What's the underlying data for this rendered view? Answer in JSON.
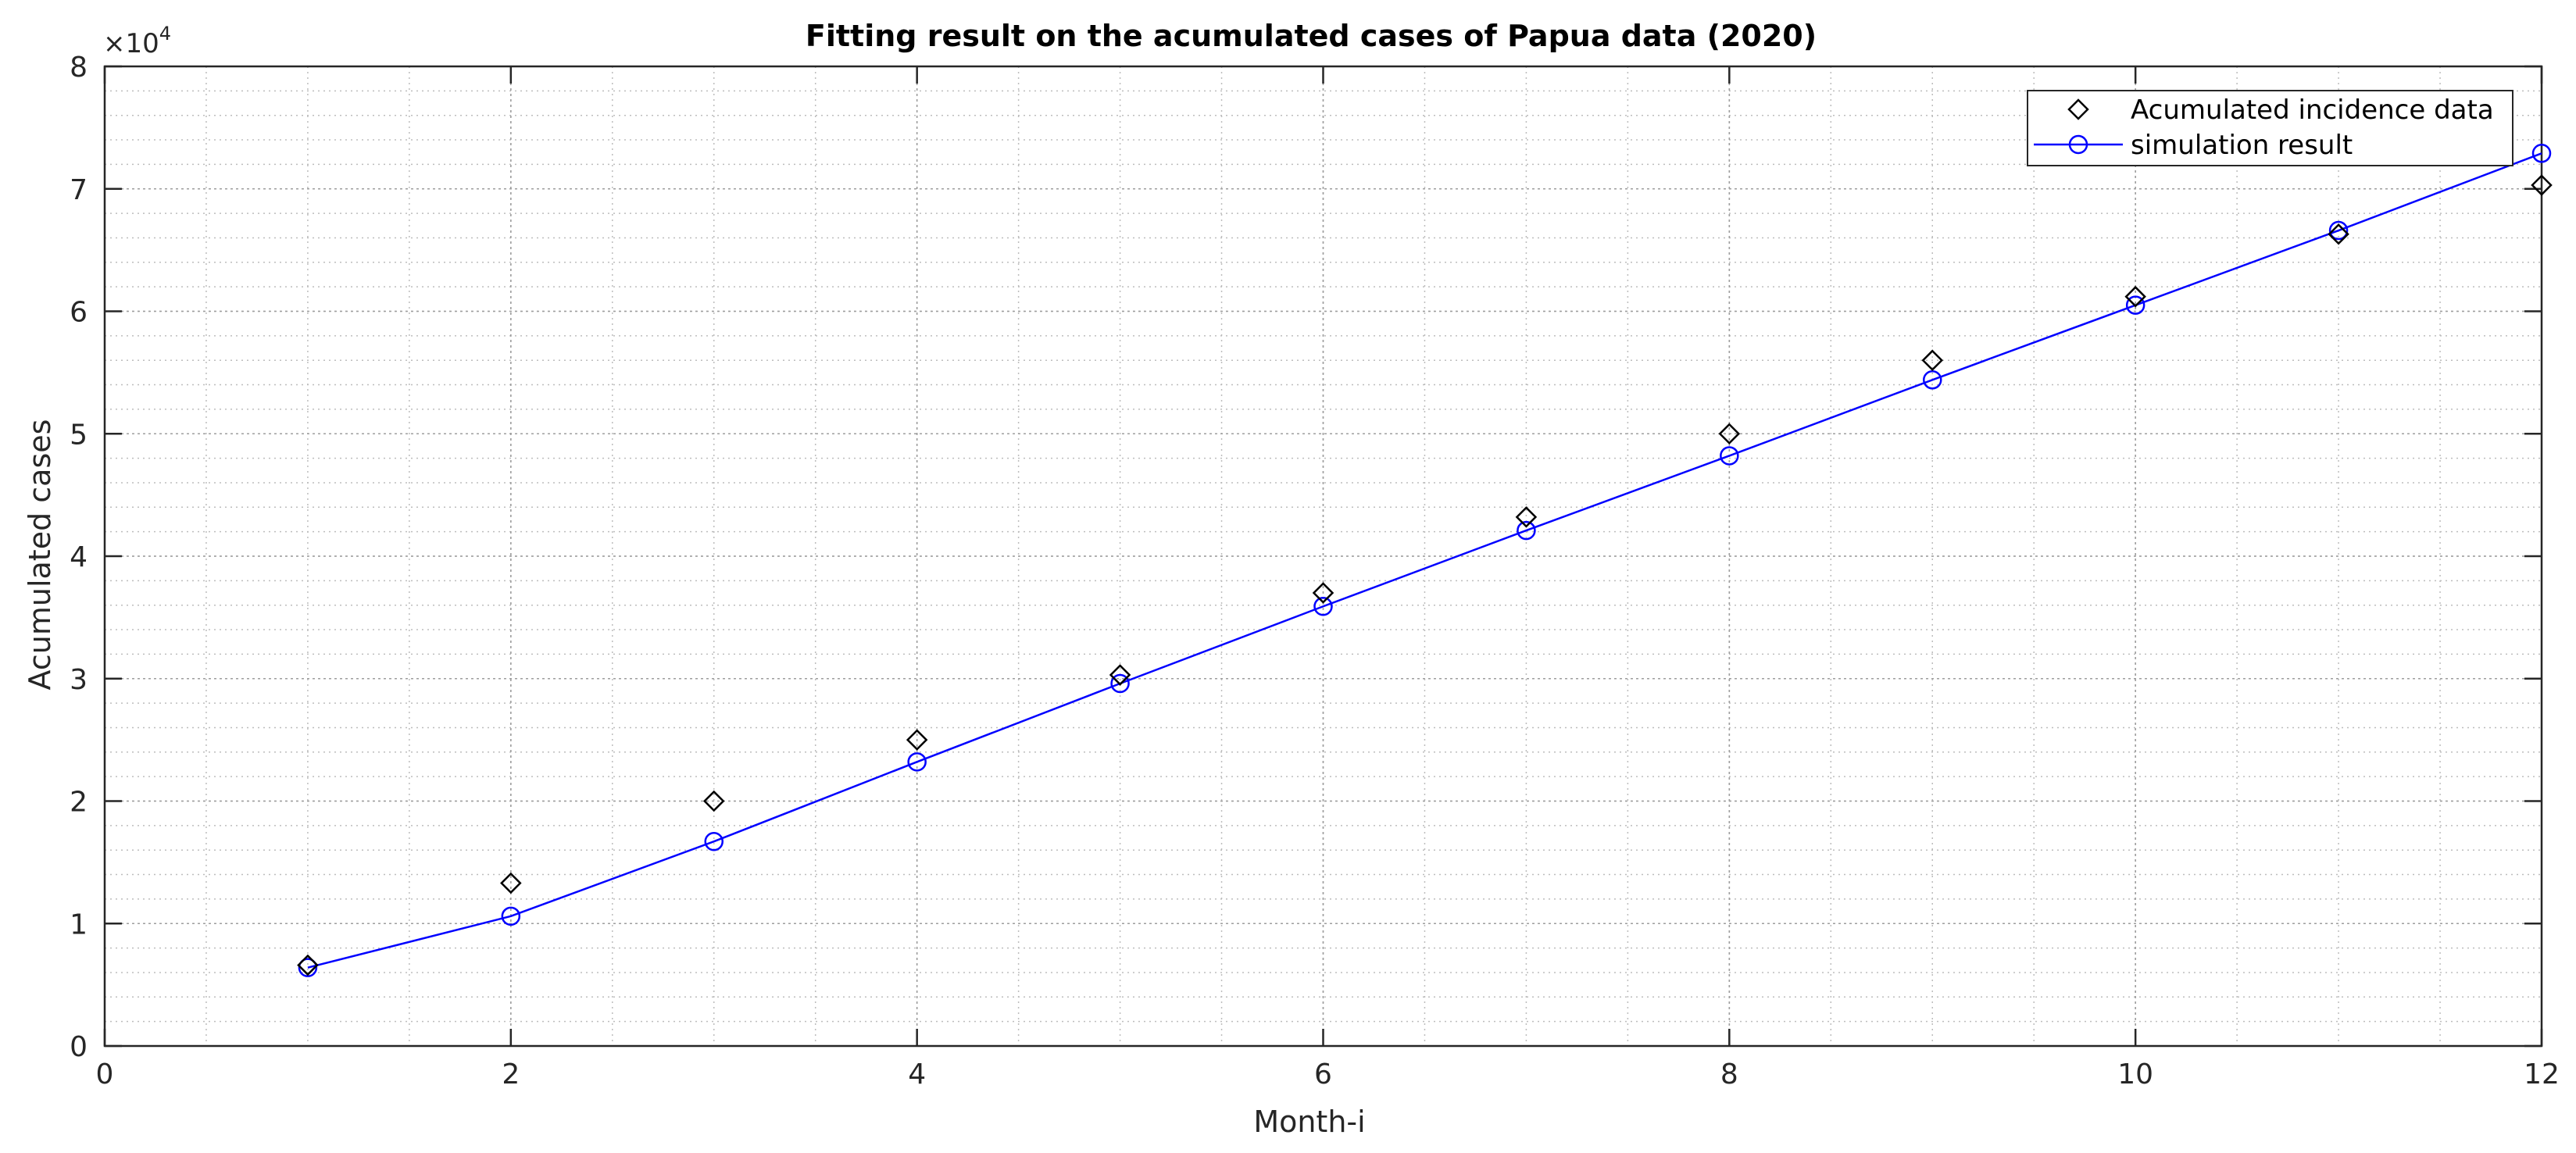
{
  "chart_data": {
    "type": "line",
    "title": "Fitting result on the acumulated cases of Papua data (2020)",
    "xlabel": "Month-i",
    "ylabel": "Acumulated cases",
    "xlim": [
      0,
      12
    ],
    "ylim": [
      0,
      80000
    ],
    "x_ticks": [
      0,
      2,
      4,
      6,
      8,
      10,
      12
    ],
    "y_ticks": [
      0,
      10000,
      20000,
      30000,
      40000,
      50000,
      60000,
      70000,
      80000
    ],
    "x_tick_labels": [
      "0",
      "2",
      "4",
      "6",
      "8",
      "10",
      "12"
    ],
    "y_tick_labels": [
      "0",
      "1",
      "2",
      "3",
      "4",
      "5",
      "6",
      "7",
      "8"
    ],
    "y_exponent": {
      "base": "×10",
      "power": "4"
    },
    "grid": true,
    "minor_grid": true,
    "legend_position": "top-right",
    "series": [
      {
        "name": "Acumulated incidence data",
        "style": "markers",
        "marker": "diamond",
        "color": "#000000",
        "x": [
          1,
          2,
          3,
          4,
          5,
          6,
          7,
          8,
          9,
          10,
          11,
          12
        ],
        "y": [
          6600,
          13300,
          20000,
          25000,
          30300,
          37000,
          43200,
          50000,
          56000,
          61200,
          66300,
          70300
        ]
      },
      {
        "name": "simulation result",
        "style": "line+markers",
        "marker": "circle",
        "color": "#0000ff",
        "x": [
          1,
          2,
          3,
          4,
          5,
          6,
          7,
          8,
          9,
          10,
          11,
          12
        ],
        "y": [
          6400,
          10600,
          16700,
          23200,
          29600,
          35900,
          42100,
          48200,
          54400,
          60500,
          66600,
          72900
        ]
      }
    ]
  }
}
